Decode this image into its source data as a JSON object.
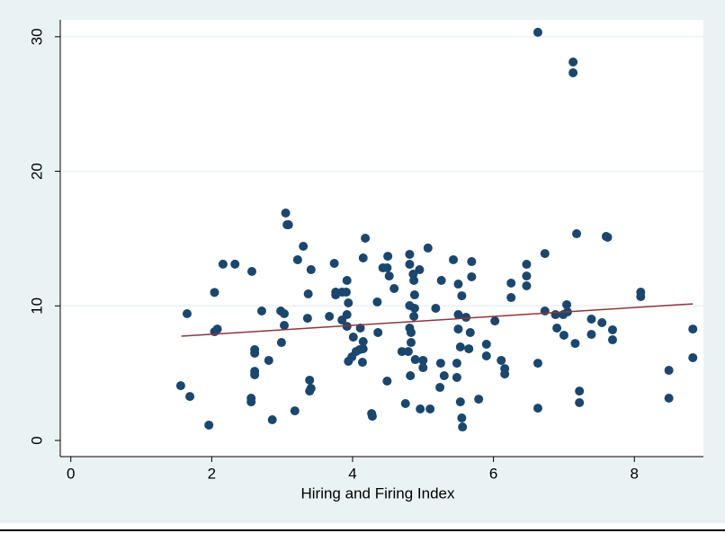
{
  "chart_data": {
    "type": "scatter",
    "x_label": "Hiring and Firing Index",
    "xlim": [
      -0.15,
      8.98
    ],
    "ylim": [
      -1.2,
      31.26
    ],
    "xticks": [
      0,
      2,
      4,
      6,
      8
    ],
    "yticks": [
      0,
      10,
      20,
      30
    ],
    "grid": true,
    "x": [
      1.56,
      1.65,
      1.69,
      1.96,
      2.04,
      2.04,
      2.08,
      2.16,
      2.33,
      2.57,
      2.56,
      2.56,
      2.61,
      2.61,
      2.61,
      2.61,
      2.71,
      2.81,
      2.86,
      2.98,
      2.99,
      3.03,
      3.03,
      3.05,
      3.07,
      3.09,
      3.18,
      3.22,
      3.3,
      3.36,
      3.37,
      3.39,
      3.39,
      3.41,
      3.41,
      3.67,
      3.74,
      3.76,
      3.76,
      3.85,
      3.85,
      3.91,
      3.92,
      3.94,
      3.92,
      3.92,
      3.94,
      3.99,
      4.01,
      4.05,
      4.1,
      4.11,
      4.14,
      4.15,
      4.18,
      4.15,
      4.15,
      4.27,
      4.28,
      4.35,
      4.36,
      4.43,
      4.49,
      4.49,
      4.5,
      4.52,
      4.59,
      4.7,
      4.75,
      4.79,
      4.81,
      4.81,
      4.81,
      4.81,
      4.82,
      4.83,
      4.83,
      4.86,
      4.87,
      4.87,
      4.88,
      4.88,
      4.89,
      4.95,
      4.96,
      5.0,
      5.0,
      5.07,
      5.1,
      5.18,
      5.24,
      5.25,
      5.26,
      5.3,
      5.43,
      5.48,
      5.48,
      5.5,
      5.5,
      5.5,
      5.53,
      5.53,
      5.55,
      5.55,
      5.56,
      5.61,
      5.65,
      5.67,
      5.69,
      5.69,
      5.79,
      5.9,
      5.9,
      6.02,
      6.11,
      6.16,
      6.16,
      6.25,
      6.25,
      6.47,
      6.47,
      6.47,
      6.63,
      6.63,
      6.63,
      6.73,
      6.73,
      6.88,
      6.9,
      6.99,
      7.0,
      7.04,
      7.05,
      7.13,
      7.13,
      7.16,
      7.18,
      7.22,
      7.22,
      7.39,
      7.39,
      7.54,
      7.6,
      7.62,
      7.69,
      7.69,
      8.09,
      8.09,
      8.49,
      8.49,
      8.83,
      8.83
    ],
    "series": [
      {
        "color": "#1a476f",
        "values": [
          4.07,
          9.42,
          3.27,
          1.14,
          11.0,
          8.08,
          8.28,
          13.1,
          13.1,
          12.56,
          3.14,
          2.87,
          6.75,
          6.48,
          5.14,
          4.88,
          9.62,
          5.95,
          1.54,
          9.62,
          7.28,
          9.42,
          8.55,
          16.9,
          16.03,
          16.03,
          2.2,
          13.43,
          14.43,
          9.08,
          10.89,
          4.48,
          3.67,
          12.69,
          3.87,
          9.22,
          13.16,
          10.82,
          11.02,
          8.95,
          11.02,
          11.02,
          11.89,
          10.22,
          9.35,
          8.48,
          5.88,
          6.21,
          7.68,
          6.61,
          6.75,
          8.35,
          5.81,
          13.56,
          15.03,
          7.35,
          6.81,
          2.0,
          1.8,
          10.29,
          8.02,
          12.83,
          12.83,
          4.41,
          13.69,
          12.22,
          11.29,
          6.61,
          2.74,
          6.61,
          13.83,
          13.09,
          10.02,
          8.35,
          4.81,
          8.02,
          7.28,
          12.36,
          11.89,
          9.22,
          9.82,
          10.82,
          6.01,
          12.69,
          2.34,
          5.95,
          5.41,
          14.3,
          2.34,
          9.82,
          3.94,
          5.74,
          11.89,
          4.81,
          13.43,
          5.74,
          4.68,
          11.62,
          9.35,
          8.28,
          6.95,
          2.87,
          10.75,
          1.67,
          1.0,
          9.15,
          6.81,
          8.02,
          13.29,
          12.16,
          3.07,
          7.15,
          6.28,
          8.88,
          5.95,
          5.34,
          4.94,
          11.69,
          10.62,
          13.09,
          12.22,
          11.49,
          30.33,
          5.74,
          2.4,
          13.89,
          9.62,
          9.35,
          8.35,
          9.35,
          7.82,
          10.09,
          9.55,
          28.12,
          27.32,
          7.21,
          15.36,
          3.67,
          2.81,
          9.02,
          7.88,
          8.75,
          15.16,
          15.1,
          8.22,
          7.48,
          11.02,
          10.69,
          5.21,
          3.14,
          8.28,
          6.15
        ]
      }
    ],
    "fit": {
      "color": "#90353b",
      "x": [
        1.57,
        8.83
      ],
      "values": [
        7.75,
        10.15
      ]
    }
  }
}
